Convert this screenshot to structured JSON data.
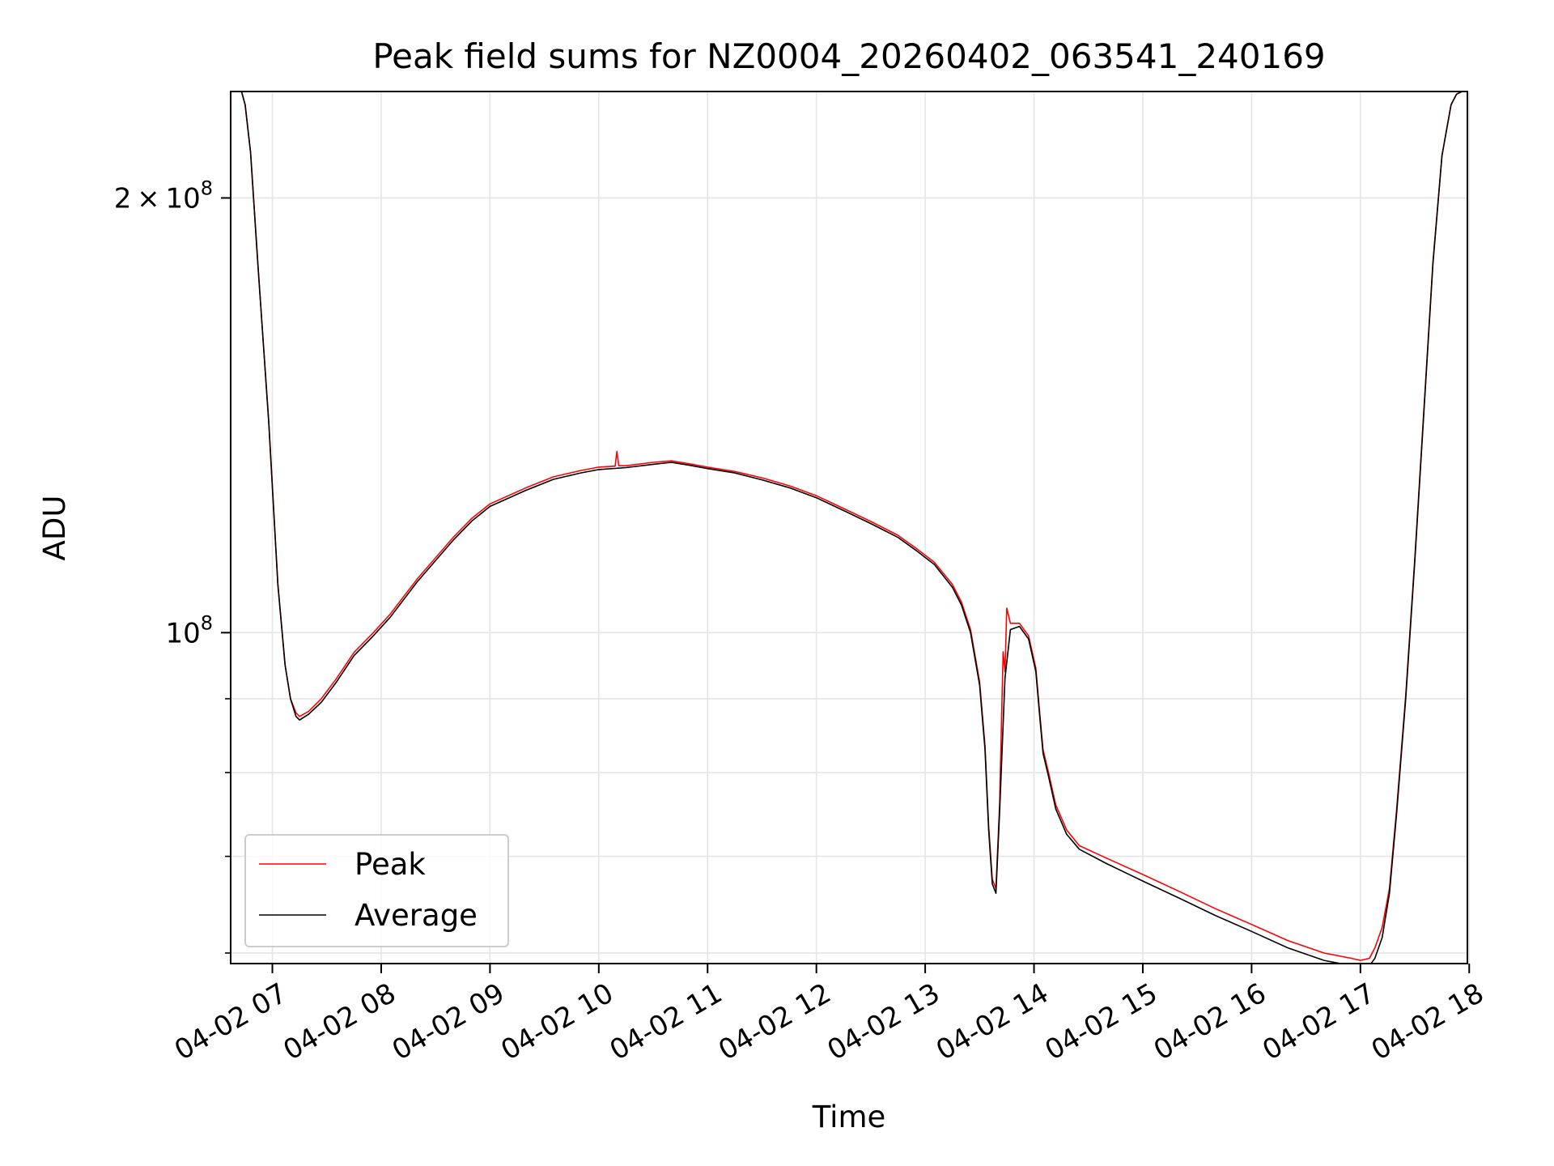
{
  "chart_data": {
    "type": "line",
    "title": "Peak field sums for NZ0004_20260402_063541_240169",
    "xlabel": "Time",
    "ylabel": "ADU",
    "yscale": "log",
    "grid": true,
    "legend_position": "lower-left",
    "xlim": [
      "2026-04-02 06:37",
      "2026-04-02 17:59"
    ],
    "ylim": [
      59000000,
      237000000
    ],
    "x_ticks": [
      {
        "value": "2026-04-02 07:00",
        "label": "04-02 07"
      },
      {
        "value": "2026-04-02 08:00",
        "label": "04-02 08"
      },
      {
        "value": "2026-04-02 09:00",
        "label": "04-02 09"
      },
      {
        "value": "2026-04-02 10:00",
        "label": "04-02 10"
      },
      {
        "value": "2026-04-02 11:00",
        "label": "04-02 11"
      },
      {
        "value": "2026-04-02 12:00",
        "label": "04-02 12"
      },
      {
        "value": "2026-04-02 13:00",
        "label": "04-02 13"
      },
      {
        "value": "2026-04-02 14:00",
        "label": "04-02 14"
      },
      {
        "value": "2026-04-02 15:00",
        "label": "04-02 15"
      },
      {
        "value": "2026-04-02 16:00",
        "label": "04-02 16"
      },
      {
        "value": "2026-04-02 17:00",
        "label": "04-02 17"
      },
      {
        "value": "2026-04-02 18:00",
        "label": "04-02 18"
      }
    ],
    "y_major_ticks": [
      {
        "value": 100000000,
        "base": "10",
        "exp": "8",
        "prefix": ""
      },
      {
        "value": 200000000,
        "base": "10",
        "exp": "8",
        "prefix": "2 × "
      }
    ],
    "y_minor_ticks": [
      60000000,
      70000000,
      80000000,
      90000000
    ],
    "colors": {
      "peak": "#ff0000",
      "average": "#000000",
      "grid": "#e5e5e5"
    },
    "series": [
      {
        "name": "Average",
        "x": [
          "2026-04-02 06:37",
          "2026-04-02 06:43",
          "2026-04-02 06:45",
          "2026-04-02 06:48",
          "2026-04-02 06:52",
          "2026-04-02 06:58",
          "2026-04-02 07:03",
          "2026-04-02 07:07",
          "2026-04-02 07:10",
          "2026-04-02 07:13",
          "2026-04-02 07:15",
          "2026-04-02 07:20",
          "2026-04-02 07:27",
          "2026-04-02 07:35",
          "2026-04-02 07:45",
          "2026-04-02 07:55",
          "2026-04-02 08:05",
          "2026-04-02 08:20",
          "2026-04-02 08:40",
          "2026-04-02 08:50",
          "2026-04-02 09:00",
          "2026-04-02 09:20",
          "2026-04-02 09:35",
          "2026-04-02 09:50",
          "2026-04-02 10:00",
          "2026-04-02 10:15",
          "2026-04-02 10:30",
          "2026-04-02 10:40",
          "2026-04-02 10:50",
          "2026-04-02 11:00",
          "2026-04-02 11:15",
          "2026-04-02 11:30",
          "2026-04-02 11:45",
          "2026-04-02 12:00",
          "2026-04-02 12:15",
          "2026-04-02 12:30",
          "2026-04-02 12:45",
          "2026-04-02 12:55",
          "2026-04-02 13:05",
          "2026-04-02 13:15",
          "2026-04-02 13:20",
          "2026-04-02 13:25",
          "2026-04-02 13:30",
          "2026-04-02 13:33",
          "2026-04-02 13:35",
          "2026-04-02 13:37",
          "2026-04-02 13:39",
          "2026-04-02 13:41",
          "2026-04-02 13:44",
          "2026-04-02 13:47",
          "2026-04-02 13:52",
          "2026-04-02 13:57",
          "2026-04-02 14:01",
          "2026-04-02 14:03",
          "2026-04-02 14:05",
          "2026-04-02 14:08",
          "2026-04-02 14:12",
          "2026-04-02 14:18",
          "2026-04-02 14:25",
          "2026-04-02 14:40",
          "2026-04-02 15:00",
          "2026-04-02 15:20",
          "2026-04-02 15:40",
          "2026-04-02 16:00",
          "2026-04-02 16:20",
          "2026-04-02 16:40",
          "2026-04-02 16:55",
          "2026-04-02 17:00",
          "2026-04-02 17:05",
          "2026-04-02 17:08",
          "2026-04-02 17:12",
          "2026-04-02 17:16",
          "2026-04-02 17:20",
          "2026-04-02 17:25",
          "2026-04-02 17:30",
          "2026-04-02 17:35",
          "2026-04-02 17:40",
          "2026-04-02 17:45",
          "2026-04-02 17:50",
          "2026-04-02 17:53",
          "2026-04-02 17:56",
          "2026-04-02 17:59"
        ],
        "y": [
          237000000,
          237000000,
          232000000,
          215000000,
          180000000,
          140000000,
          108000000,
          95000000,
          90000000,
          87500000,
          87000000,
          87800000,
          89500000,
          92300000,
          96400000,
          99300000,
          102500000,
          108500000,
          116000000,
          119500000,
          122300000,
          125500000,
          127700000,
          129000000,
          129700000,
          130100000,
          130800000,
          131200000,
          130600000,
          129900000,
          129000000,
          127600000,
          126000000,
          124000000,
          121500000,
          119000000,
          116400000,
          114000000,
          111500000,
          107500000,
          104500000,
          100000000,
          92000000,
          83000000,
          73000000,
          67000000,
          66000000,
          75000000,
          93000000,
          100500000,
          101000000,
          99000000,
          94000000,
          88000000,
          82500000,
          79500000,
          75500000,
          72500000,
          70800000,
          69200000,
          67300000,
          65500000,
          63700000,
          62100000,
          60500000,
          59300000,
          58800000,
          58700000,
          58800000,
          59500000,
          61500000,
          66000000,
          75000000,
          90000000,
          112000000,
          142000000,
          180000000,
          214000000,
          232000000,
          236000000,
          237000000,
          237000000
        ]
      },
      {
        "name": "Peak",
        "x": [
          "2026-04-02 06:37",
          "2026-04-02 06:43",
          "2026-04-02 06:45",
          "2026-04-02 06:48",
          "2026-04-02 06:52",
          "2026-04-02 06:58",
          "2026-04-02 07:03",
          "2026-04-02 07:07",
          "2026-04-02 07:10",
          "2026-04-02 07:13",
          "2026-04-02 07:15",
          "2026-04-02 07:20",
          "2026-04-02 07:27",
          "2026-04-02 07:35",
          "2026-04-02 07:45",
          "2026-04-02 07:55",
          "2026-04-02 08:05",
          "2026-04-02 08:20",
          "2026-04-02 08:40",
          "2026-04-02 08:50",
          "2026-04-02 09:00",
          "2026-04-02 09:20",
          "2026-04-02 09:35",
          "2026-04-02 09:50",
          "2026-04-02 10:00",
          "2026-04-02 10:09",
          "2026-04-02 10:10",
          "2026-04-02 10:11",
          "2026-04-02 10:15",
          "2026-04-02 10:30",
          "2026-04-02 10:40",
          "2026-04-02 10:50",
          "2026-04-02 11:00",
          "2026-04-02 11:15",
          "2026-04-02 11:30",
          "2026-04-02 11:45",
          "2026-04-02 12:00",
          "2026-04-02 12:15",
          "2026-04-02 12:30",
          "2026-04-02 12:45",
          "2026-04-02 12:55",
          "2026-04-02 13:05",
          "2026-04-02 13:15",
          "2026-04-02 13:20",
          "2026-04-02 13:25",
          "2026-04-02 13:30",
          "2026-04-02 13:33",
          "2026-04-02 13:35",
          "2026-04-02 13:37",
          "2026-04-02 13:39",
          "2026-04-02 13:41",
          "2026-04-02 13:43",
          "2026-04-02 13:44",
          "2026-04-02 13:45",
          "2026-04-02 13:47",
          "2026-04-02 13:52",
          "2026-04-02 13:57",
          "2026-04-02 14:01",
          "2026-04-02 14:03",
          "2026-04-02 14:05",
          "2026-04-02 14:08",
          "2026-04-02 14:12",
          "2026-04-02 14:18",
          "2026-04-02 14:25",
          "2026-04-02 14:40",
          "2026-04-02 15:00",
          "2026-04-02 15:20",
          "2026-04-02 15:40",
          "2026-04-02 16:00",
          "2026-04-02 16:20",
          "2026-04-02 16:40",
          "2026-04-02 16:55",
          "2026-04-02 17:00",
          "2026-04-02 17:05",
          "2026-04-02 17:08",
          "2026-04-02 17:12",
          "2026-04-02 17:16",
          "2026-04-02 17:20",
          "2026-04-02 17:25",
          "2026-04-02 17:30",
          "2026-04-02 17:35",
          "2026-04-02 17:40",
          "2026-04-02 17:45",
          "2026-04-02 17:50",
          "2026-04-02 17:53",
          "2026-04-02 17:56",
          "2026-04-02 17:59"
        ],
        "y": [
          237000000,
          237000000,
          232000000,
          215000000,
          180000000,
          140000000,
          108000000,
          95000000,
          90000000,
          88000000,
          87500000,
          88200000,
          90000000,
          92800000,
          96900000,
          99800000,
          103000000,
          109000000,
          116500000,
          120000000,
          122800000,
          126000000,
          128200000,
          129500000,
          130200000,
          130400000,
          133500000,
          130500000,
          130500000,
          131200000,
          131500000,
          130900000,
          130200000,
          129300000,
          128000000,
          126400000,
          124400000,
          121900000,
          119400000,
          116800000,
          114400000,
          111900000,
          108000000,
          105000000,
          100500000,
          92500000,
          83500000,
          73500000,
          67500000,
          66500000,
          76000000,
          97000000,
          94000000,
          104000000,
          101500000,
          101500000,
          99500000,
          94500000,
          88500000,
          83000000,
          80000000,
          76000000,
          73000000,
          71200000,
          69800000,
          68000000,
          66200000,
          64400000,
          62800000,
          61200000,
          60000000,
          59500000,
          59300000,
          59500000,
          60500000,
          62500000,
          66500000,
          75500000,
          90500000,
          112500000,
          142500000,
          180500000,
          214000000,
          232000000,
          236000000,
          237000000,
          237000000
        ]
      }
    ]
  },
  "text": {
    "title": "Peak field sums for NZ0004_20260402_063541_240169",
    "xlabel": "Time",
    "ylabel": "ADU",
    "legend_peak": "Peak",
    "legend_average": "Average"
  }
}
